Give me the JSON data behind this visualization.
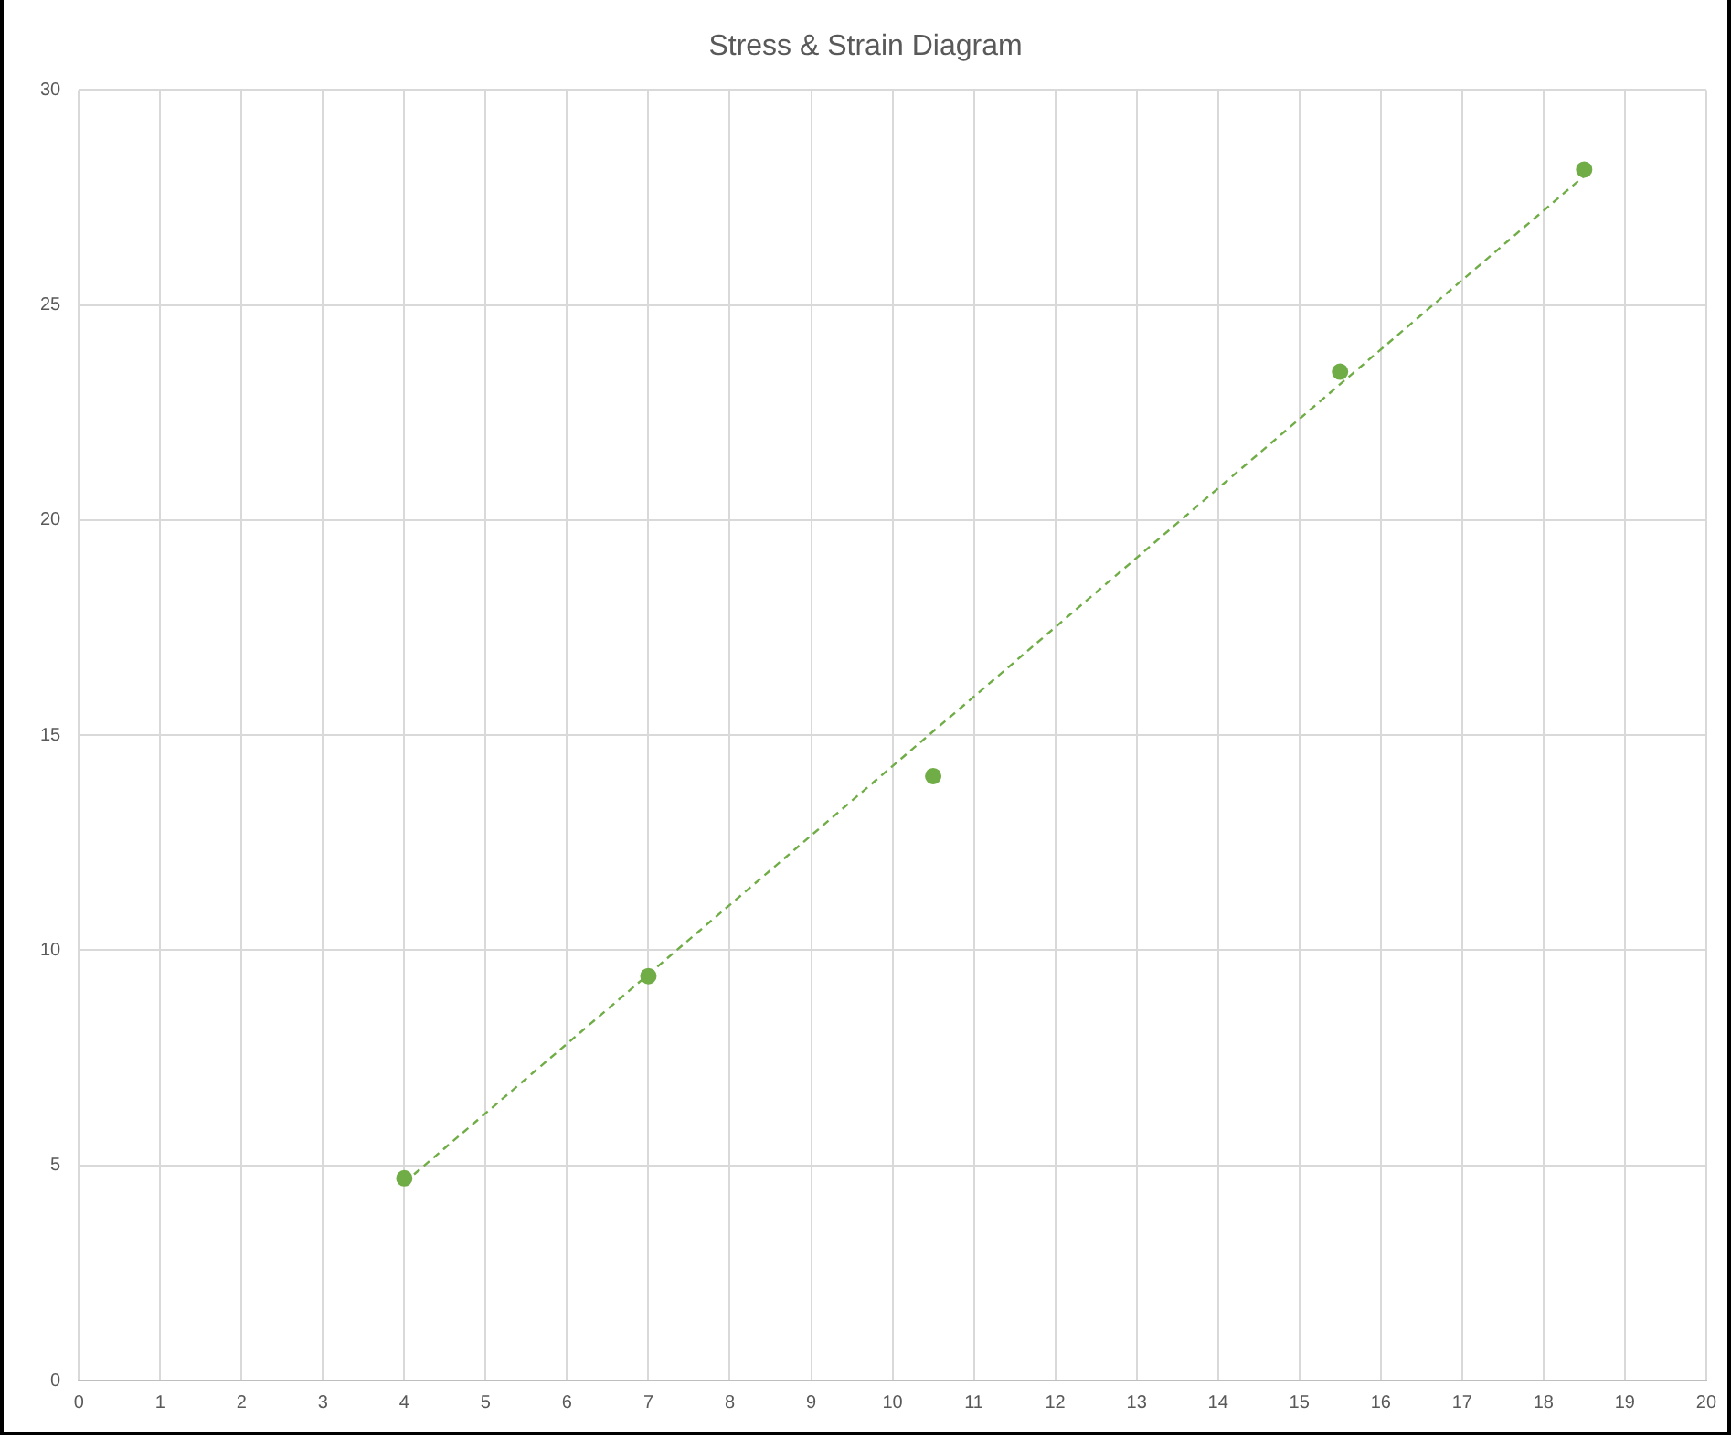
{
  "chart_data": {
    "type": "scatter",
    "title": "Stress & Strain Diagram",
    "xlim": [
      0,
      20
    ],
    "xticks": [
      0,
      1,
      2,
      3,
      4,
      5,
      6,
      7,
      8,
      9,
      10,
      11,
      12,
      13,
      14,
      15,
      16,
      17,
      18,
      19,
      20
    ],
    "ylim": [
      0,
      30
    ],
    "yticks": [
      0,
      5,
      10,
      15,
      20,
      25,
      30
    ],
    "grid": true,
    "legend": false,
    "marker": "circle",
    "series": [
      {
        "type": "scatter",
        "color": "#70ad47",
        "x": [
          4,
          7,
          10.5,
          15.5,
          18.5
        ],
        "values": [
          4.7,
          9.4,
          14.05,
          23.45,
          28.15
        ]
      },
      {
        "type": "line",
        "color": "#70ad47",
        "line_style": "dashed",
        "marker": "none",
        "x": [
          4,
          18.5
        ],
        "values": [
          4.6,
          28.0
        ]
      }
    ]
  }
}
